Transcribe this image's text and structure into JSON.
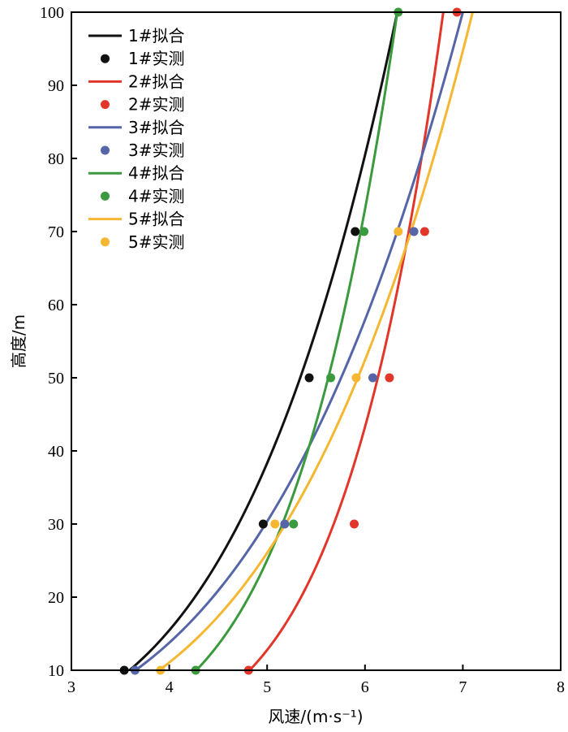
{
  "chart_data": {
    "type": "line",
    "title": "",
    "xlabel": "风速/(m·s⁻¹)",
    "ylabel": "高度/m",
    "xlim": [
      3,
      8
    ],
    "ylim": [
      10,
      100
    ],
    "x_ticks": [
      "3",
      "4",
      "5",
      "6",
      "7",
      "8"
    ],
    "y_ticks": [
      "10",
      "20",
      "30",
      "40",
      "50",
      "60",
      "70",
      "80",
      "90",
      "100"
    ],
    "grid": false,
    "legend_position": "top-left",
    "series": [
      {
        "id": "1",
        "fit_name": "1#拟合",
        "measured_name": "1#实测",
        "color": "#111111",
        "fit_top_x": 6.33,
        "fit_alpha": 0.2459,
        "measured": [
          {
            "x": 3.54,
            "y": 10
          },
          {
            "x": 4.96,
            "y": 30
          },
          {
            "x": 5.43,
            "y": 50
          },
          {
            "x": 5.9,
            "y": 70
          }
        ]
      },
      {
        "id": "2",
        "fit_name": "2#拟合",
        "measured_name": "2#实测",
        "color": "#e2362b",
        "fit_top_x": 6.8,
        "fit_alpha": 0.1494,
        "measured": [
          {
            "x": 4.81,
            "y": 10
          },
          {
            "x": 5.89,
            "y": 30
          },
          {
            "x": 6.25,
            "y": 50
          },
          {
            "x": 6.61,
            "y": 70
          },
          {
            "x": 6.94,
            "y": 100
          }
        ]
      },
      {
        "id": "3",
        "fit_name": "3#拟合",
        "measured_name": "3#实测",
        "color": "#5565a8",
        "fit_top_x": 7.0,
        "fit_alpha": 0.2822,
        "measured": [
          {
            "x": 3.65,
            "y": 10
          },
          {
            "x": 5.18,
            "y": 30
          },
          {
            "x": 6.08,
            "y": 50
          },
          {
            "x": 6.5,
            "y": 70
          }
        ]
      },
      {
        "id": "4",
        "fit_name": "4#拟合",
        "measured_name": "4#实测",
        "color": "#3a9a3d",
        "fit_top_x": 6.33,
        "fit_alpha": 0.1704,
        "measured": [
          {
            "x": 4.27,
            "y": 10
          },
          {
            "x": 5.27,
            "y": 30
          },
          {
            "x": 5.65,
            "y": 50
          },
          {
            "x": 5.99,
            "y": 70
          },
          {
            "x": 6.34,
            "y": 100
          }
        ]
      },
      {
        "id": "5",
        "fit_name": "5#拟合",
        "measured_name": "5#实测",
        "color": "#f5b731",
        "fit_top_x": 7.1,
        "fit_alpha": 0.2606,
        "measured": [
          {
            "x": 3.91,
            "y": 10
          },
          {
            "x": 5.08,
            "y": 30
          },
          {
            "x": 5.91,
            "y": 50
          },
          {
            "x": 6.34,
            "y": 70
          }
        ]
      }
    ]
  }
}
